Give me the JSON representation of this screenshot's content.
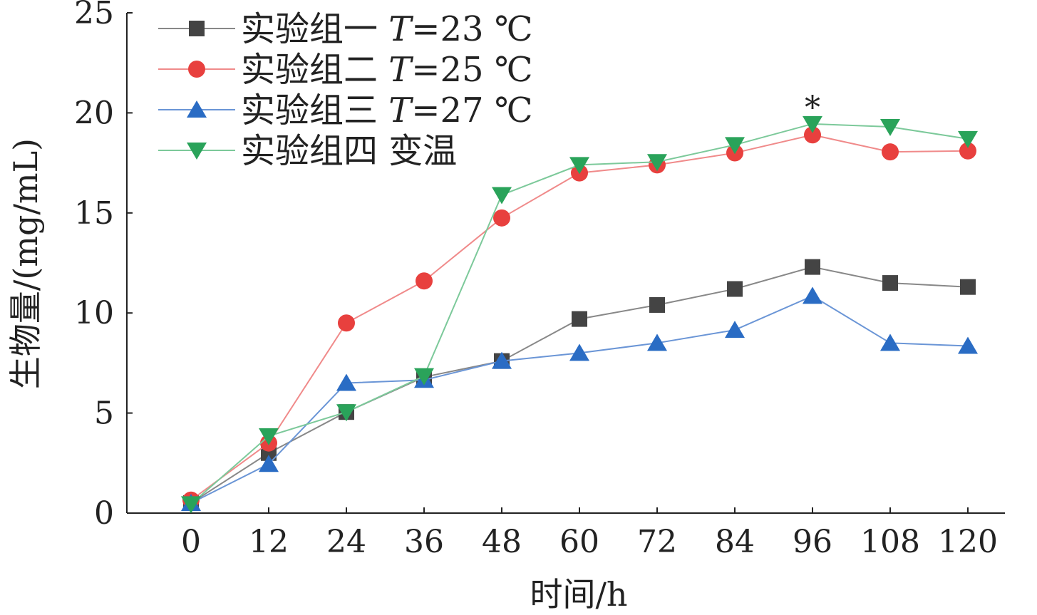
{
  "chart_data": {
    "type": "line",
    "title": "",
    "xlabel": "时间/h",
    "ylabel": "生物量/(mg/mL)",
    "x": [
      0,
      12,
      24,
      36,
      48,
      60,
      72,
      84,
      96,
      108,
      120
    ],
    "xticks": [
      "0",
      "12",
      "24",
      "36",
      "48",
      "60",
      "72",
      "84",
      "96",
      "108",
      "120"
    ],
    "yticks": [
      "0",
      "5",
      "10",
      "15",
      "20",
      "25"
    ],
    "ylim": [
      0,
      25
    ],
    "grid": false,
    "legend_position": "top-left",
    "annotation": {
      "text": "*",
      "x": 96,
      "y": 19.45
    },
    "series": [
      {
        "name": "实验组一",
        "cond_var": "T",
        "cond_val": "=23 ℃",
        "color": "#888888",
        "marker_color": "#444444",
        "marker": "square",
        "values": [
          0.5,
          3.0,
          5.05,
          6.8,
          7.6,
          9.7,
          10.4,
          11.2,
          12.3,
          11.5,
          11.3
        ]
      },
      {
        "name": "实验组二",
        "cond_var": "T",
        "cond_val": "=25 ℃",
        "color": "#f08a8a",
        "marker_color": "#e8403e",
        "marker": "circle",
        "values": [
          0.65,
          3.5,
          9.5,
          11.6,
          14.75,
          17.0,
          17.4,
          18.0,
          18.9,
          18.05,
          18.1
        ]
      },
      {
        "name": "实验组三",
        "cond_var": "T",
        "cond_val": "=27 ℃",
        "color": "#6a95d6",
        "marker_color": "#2a6cc4",
        "marker": "triangle-up",
        "values": [
          0.5,
          2.45,
          6.5,
          6.65,
          7.6,
          8.0,
          8.5,
          9.15,
          10.85,
          8.5,
          8.35
        ]
      },
      {
        "name": "实验组四",
        "cond_var": "",
        "cond_val": "变温",
        "color": "#7cc99a",
        "marker_color": "#2aa35a",
        "marker": "triangle-down",
        "values": [
          0.45,
          3.85,
          5.05,
          6.85,
          15.9,
          17.4,
          17.55,
          18.4,
          19.45,
          19.3,
          18.7
        ]
      }
    ]
  }
}
